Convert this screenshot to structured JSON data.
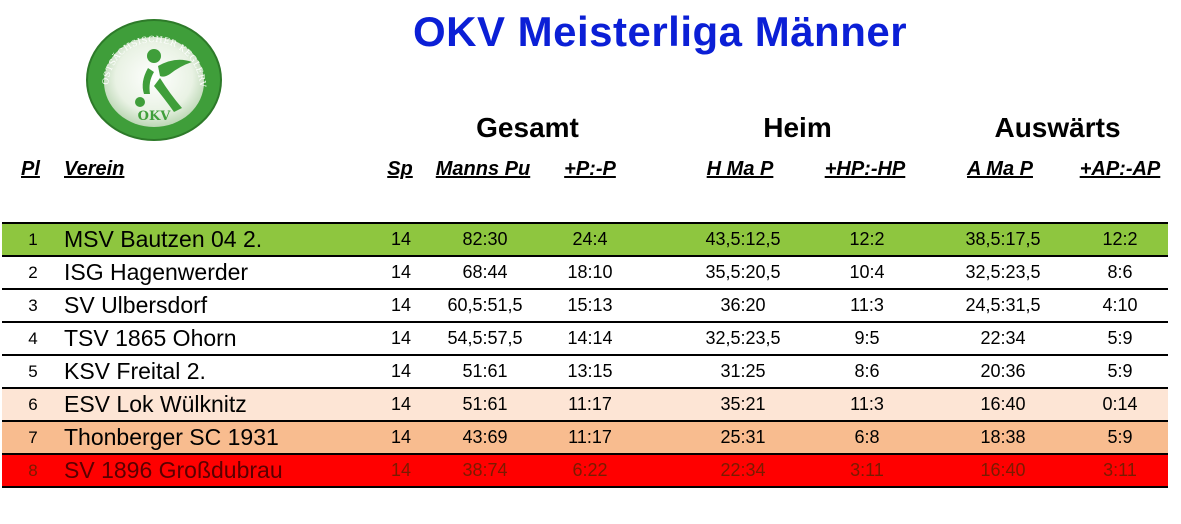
{
  "title": "OKV Meisterliga Männer",
  "logo": {
    "ring_text": "OSTSÄCHSISCHER KEGLERVERBAND E.V.",
    "letters": "OKV"
  },
  "groups": {
    "total": "Gesamt",
    "home": "Heim",
    "away": "Auswärts"
  },
  "columns": {
    "pl": "Pl",
    "verein": "Verein",
    "sp": "Sp",
    "manns_pu": "Manns Pu",
    "p": "+P:-P",
    "h_ma_p": "H Ma P",
    "hp": "+HP:-HP",
    "a_ma_p": "A Ma P",
    "ap": "+AP:-AP"
  },
  "colors": {
    "title": "#0b1fd6",
    "row_1": "#8ec63f",
    "row_6": "#fde5d5",
    "row_7": "#f8bc8f",
    "row_8": "#ff0000",
    "logo_green": "#3f9e3a"
  },
  "rows": [
    {
      "pl": "1",
      "verein": "MSV Bautzen 04 2.",
      "sp": "14",
      "manns_pu": "82:30",
      "p": "24:4",
      "h_ma_p": "43,5:12,5",
      "hp": "12:2",
      "a_ma_p": "38,5:17,5",
      "ap": "12:2"
    },
    {
      "pl": "2",
      "verein": "ISG Hagenwerder",
      "sp": "14",
      "manns_pu": "68:44",
      "p": "18:10",
      "h_ma_p": "35,5:20,5",
      "hp": "10:4",
      "a_ma_p": "32,5:23,5",
      "ap": "8:6"
    },
    {
      "pl": "3",
      "verein": "SV Ulbersdorf",
      "sp": "14",
      "manns_pu": "60,5:51,5",
      "p": "15:13",
      "h_ma_p": "36:20",
      "hp": "11:3",
      "a_ma_p": "24,5:31,5",
      "ap": "4:10"
    },
    {
      "pl": "4",
      "verein": "TSV 1865 Ohorn",
      "sp": "14",
      "manns_pu": "54,5:57,5",
      "p": "14:14",
      "h_ma_p": "32,5:23,5",
      "hp": "9:5",
      "a_ma_p": "22:34",
      "ap": "5:9"
    },
    {
      "pl": "5",
      "verein": "KSV Freital 2.",
      "sp": "14",
      "manns_pu": "51:61",
      "p": "13:15",
      "h_ma_p": "31:25",
      "hp": "8:6",
      "a_ma_p": "20:36",
      "ap": "5:9"
    },
    {
      "pl": "6",
      "verein": "ESV Lok Wülknitz",
      "sp": "14",
      "manns_pu": "51:61",
      "p": "11:17",
      "h_ma_p": "35:21",
      "hp": "11:3",
      "a_ma_p": "16:40",
      "ap": "0:14"
    },
    {
      "pl": "7",
      "verein": "Thonberger SC 1931",
      "sp": "14",
      "manns_pu": "43:69",
      "p": "11:17",
      "h_ma_p": "25:31",
      "hp": "6:8",
      "a_ma_p": "18:38",
      "ap": "5:9"
    },
    {
      "pl": "8",
      "verein": "SV 1896 Großdubrau",
      "sp": "14",
      "manns_pu": "38:74",
      "p": "6:22",
      "h_ma_p": "22:34",
      "hp": "3:11",
      "a_ma_p": "16:40",
      "ap": "3:11"
    }
  ]
}
